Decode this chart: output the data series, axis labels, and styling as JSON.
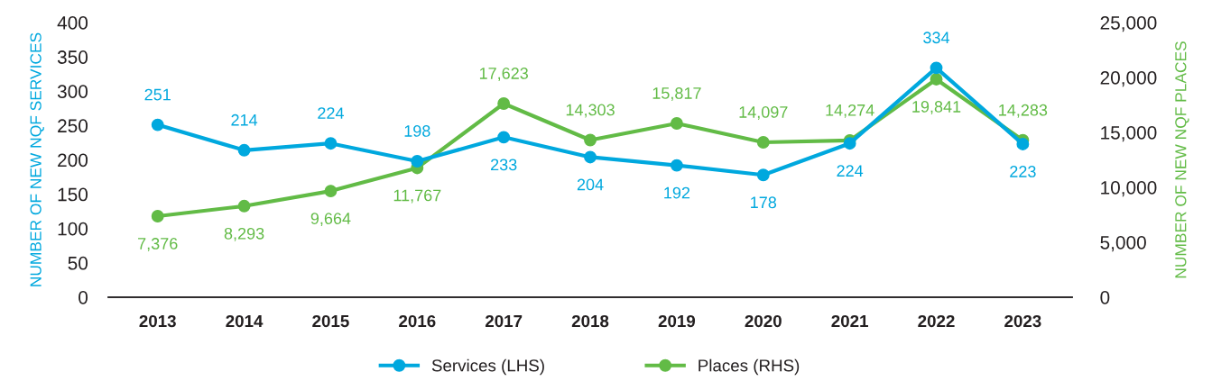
{
  "chart_data": {
    "type": "line",
    "categories": [
      "2013",
      "2014",
      "2015",
      "2016",
      "2017",
      "2018",
      "2019",
      "2020",
      "2021",
      "2022",
      "2023"
    ],
    "ylabel": "NUMBER OF NEW NQF SERVICES",
    "y2label": "NUMBER OF NEW NQF PLACES",
    "ylim": [
      0,
      400
    ],
    "yticks": [
      0,
      50,
      100,
      150,
      200,
      250,
      300,
      350,
      400
    ],
    "y2lim": [
      0,
      25000
    ],
    "y2ticks": [
      0,
      {
        "value": 5000,
        "label": "5,000"
      },
      {
        "value": 10000,
        "label": "10,000"
      },
      {
        "value": 15000,
        "label": "15,000"
      },
      {
        "value": 20000,
        "label": "20,000"
      },
      {
        "value": 25000,
        "label": "25,000"
      }
    ],
    "series": [
      {
        "name": "Services (LHS)",
        "color": "#00a8de",
        "values": [
          251,
          214,
          224,
          198,
          233,
          204,
          192,
          178,
          224,
          334,
          223
        ],
        "value_labels": [
          "251",
          "214",
          "224",
          "198",
          "233",
          "204",
          "192",
          "178",
          "224",
          "334",
          "223"
        ]
      },
      {
        "name": "Places (RHS)",
        "color": "#62bb46",
        "axis": "y2",
        "values": [
          7376,
          8293,
          9664,
          11767,
          17623,
          14303,
          15817,
          14097,
          14274,
          19841,
          14283
        ],
        "value_labels": [
          "7,376",
          "8,293",
          "9,664",
          "11,767",
          "17,623",
          "14,303",
          "15,817",
          "14,097",
          "14,274",
          "19,841",
          "14,283"
        ]
      }
    ],
    "marker": "circle",
    "line_style": "solid",
    "grid": false,
    "legend": "bottom"
  }
}
